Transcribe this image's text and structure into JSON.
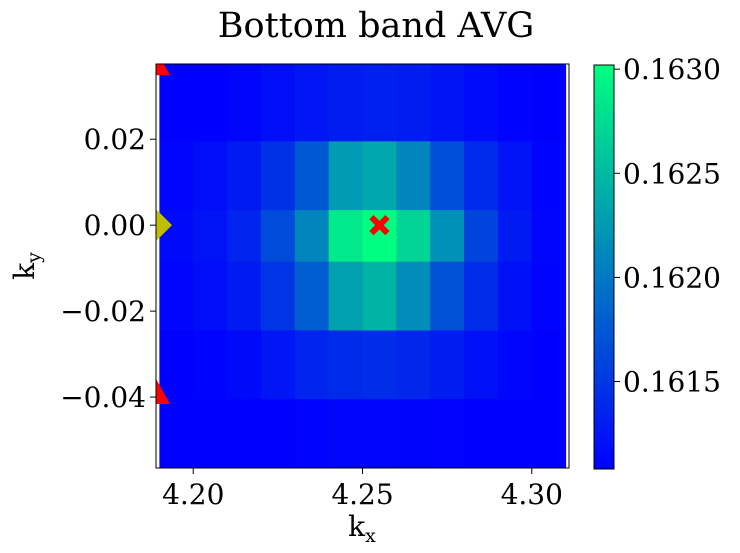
{
  "chart_data": {
    "type": "heatmap",
    "title": "Bottom band AVG",
    "xlabel": {
      "main": "k",
      "sub": "x"
    },
    "ylabel": {
      "main": "k",
      "sub": "y"
    },
    "xlim": [
      4.189,
      4.311
    ],
    "ylim": [
      -0.0565,
      0.0375
    ],
    "x_edges": [
      4.19,
      4.2,
      4.21,
      4.22,
      4.23,
      4.24,
      4.25,
      4.26,
      4.27,
      4.28,
      4.29,
      4.3,
      4.31
    ],
    "y_edges": [
      0.0375,
      0.0195,
      0.0035,
      -0.0085,
      -0.0245,
      -0.0405,
      -0.0565
    ],
    "values": [
      [
        0.16105,
        0.16108,
        0.16112,
        0.16118,
        0.16125,
        0.1613,
        0.16132,
        0.1613,
        0.16124,
        0.16117,
        0.1611,
        0.16106
      ],
      [
        0.16112,
        0.16118,
        0.16128,
        0.16145,
        0.16175,
        0.16225,
        0.16235,
        0.1621,
        0.16168,
        0.1614,
        0.16122,
        0.1611
      ],
      [
        0.16115,
        0.16122,
        0.16135,
        0.16165,
        0.1621,
        0.16285,
        0.16302,
        0.1627,
        0.16218,
        0.1616,
        0.16128,
        0.16112
      ],
      [
        0.16112,
        0.16118,
        0.16128,
        0.16148,
        0.1618,
        0.1623,
        0.16245,
        0.16215,
        0.1617,
        0.16142,
        0.1612,
        0.1611
      ],
      [
        0.16106,
        0.1611,
        0.16115,
        0.16125,
        0.16135,
        0.1614,
        0.16142,
        0.16138,
        0.1613,
        0.1612,
        0.16112,
        0.16106
      ],
      [
        0.16102,
        0.16104,
        0.16106,
        0.16108,
        0.1611,
        0.16112,
        0.16112,
        0.16111,
        0.16109,
        0.16106,
        0.16104,
        0.16102
      ]
    ],
    "xticks": [
      4.2,
      4.25,
      4.3
    ],
    "xtick_labels": [
      "4.20",
      "4.25",
      "4.30"
    ],
    "yticks": [
      0.02,
      0.0,
      -0.02,
      -0.04
    ],
    "ytick_labels": [
      "0.02",
      "0.00",
      "−0.02",
      "−0.04"
    ],
    "colorbar": {
      "range": [
        0.16108,
        0.16302
      ],
      "ticks": [
        0.163,
        0.1625,
        0.162,
        0.1615
      ],
      "tick_labels": [
        "0.1630",
        "0.1625",
        "0.1620",
        "0.1615"
      ],
      "colormap": "winter",
      "color_low": "#0000ff",
      "color_high": "#00ff80"
    },
    "markers": [
      {
        "name": "red-x-marker",
        "shape": "x",
        "color": "#ff0000",
        "x": 4.255,
        "y": 0.0
      },
      {
        "name": "yellow-diamond-marker",
        "shape": "diamond",
        "color": "#bfbf00",
        "x": 4.189,
        "y": 0.0
      },
      {
        "name": "red-triangle-marker-top",
        "shape": "triangle",
        "color": "#ff0000",
        "x": 4.189,
        "y": 0.0375
      },
      {
        "name": "red-triangle-marker-bottom",
        "shape": "triangle",
        "color": "#ff0000",
        "x": 4.189,
        "y": -0.039
      }
    ]
  }
}
